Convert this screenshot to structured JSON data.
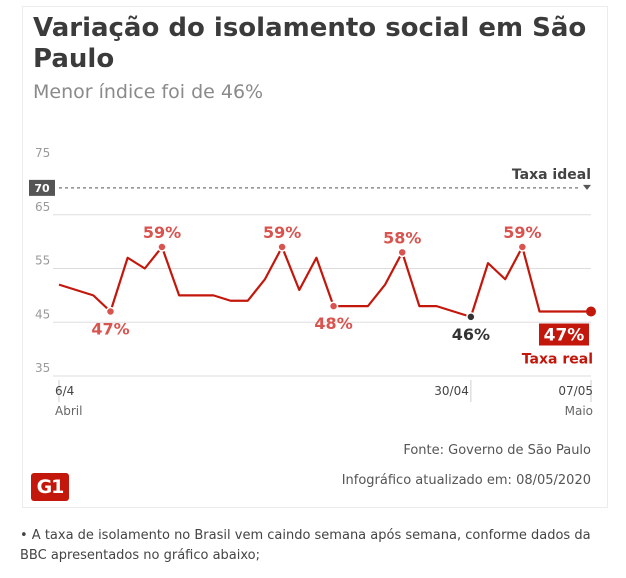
{
  "header": {
    "title": "Variação do isolamento social em São Paulo",
    "subtitle": "Menor índice foi de 46%"
  },
  "footer": {
    "source": "Fonte: Governo de São Paulo",
    "updated": "Infográfico atualizado em: 08/05/2020",
    "logo_text": "G1"
  },
  "caption": "• A taxa de isolamento no Brasil vem caindo semana após semana, conforme dados da BBC apresentados no gráfico abaixo;",
  "colors": {
    "accent": "#c4170c",
    "label_red": "#d9534f",
    "grid": "#dddddd",
    "min_point": "#333333"
  },
  "chart_data": {
    "type": "line",
    "ylim": [
      35,
      75
    ],
    "yticks": [
      35,
      45,
      55,
      65,
      75
    ],
    "xtick_labels": [
      {
        "date": "2020-04-06",
        "label": "6/4",
        "sub": "Abril"
      },
      {
        "date": "2020-04-30",
        "label": "30/04",
        "sub": ""
      },
      {
        "date": "2020-05-07",
        "label": "07/05",
        "sub": "Maio"
      }
    ],
    "reference_line": {
      "value": 70,
      "label": "Taxa ideal",
      "tag": "70"
    },
    "series": [
      {
        "name": "Taxa real",
        "x": [
          "2020-04-06",
          "2020-04-07",
          "2020-04-08",
          "2020-04-09",
          "2020-04-10",
          "2020-04-11",
          "2020-04-12",
          "2020-04-13",
          "2020-04-14",
          "2020-04-15",
          "2020-04-16",
          "2020-04-17",
          "2020-04-18",
          "2020-04-19",
          "2020-04-20",
          "2020-04-21",
          "2020-04-22",
          "2020-04-23",
          "2020-04-24",
          "2020-04-25",
          "2020-04-26",
          "2020-04-27",
          "2020-04-28",
          "2020-04-29",
          "2020-04-30",
          "2020-05-01",
          "2020-05-02",
          "2020-05-03",
          "2020-05-04",
          "2020-05-05",
          "2020-05-06",
          "2020-05-07"
        ],
        "values": [
          52,
          51,
          50,
          47,
          57,
          55,
          59,
          50,
          50,
          50,
          49,
          49,
          53,
          59,
          51,
          57,
          48,
          48,
          48,
          52,
          58,
          48,
          48,
          47,
          46,
          56,
          53,
          59,
          47,
          47,
          47,
          47
        ]
      }
    ],
    "annotations": [
      {
        "date": "2020-04-09",
        "text": "47%",
        "pos": "below",
        "style": "red"
      },
      {
        "date": "2020-04-12",
        "text": "59%",
        "pos": "above",
        "style": "red"
      },
      {
        "date": "2020-04-19",
        "text": "59%",
        "pos": "above",
        "style": "red"
      },
      {
        "date": "2020-04-22",
        "text": "48%",
        "pos": "below",
        "style": "red"
      },
      {
        "date": "2020-04-26",
        "text": "58%",
        "pos": "above",
        "style": "red"
      },
      {
        "date": "2020-04-30",
        "text": "46%",
        "pos": "below",
        "style": "dark"
      },
      {
        "date": "2020-05-03",
        "text": "59%",
        "pos": "above",
        "style": "red"
      },
      {
        "date": "2020-05-07",
        "text": "47%",
        "pos": "below",
        "style": "badge"
      }
    ]
  }
}
